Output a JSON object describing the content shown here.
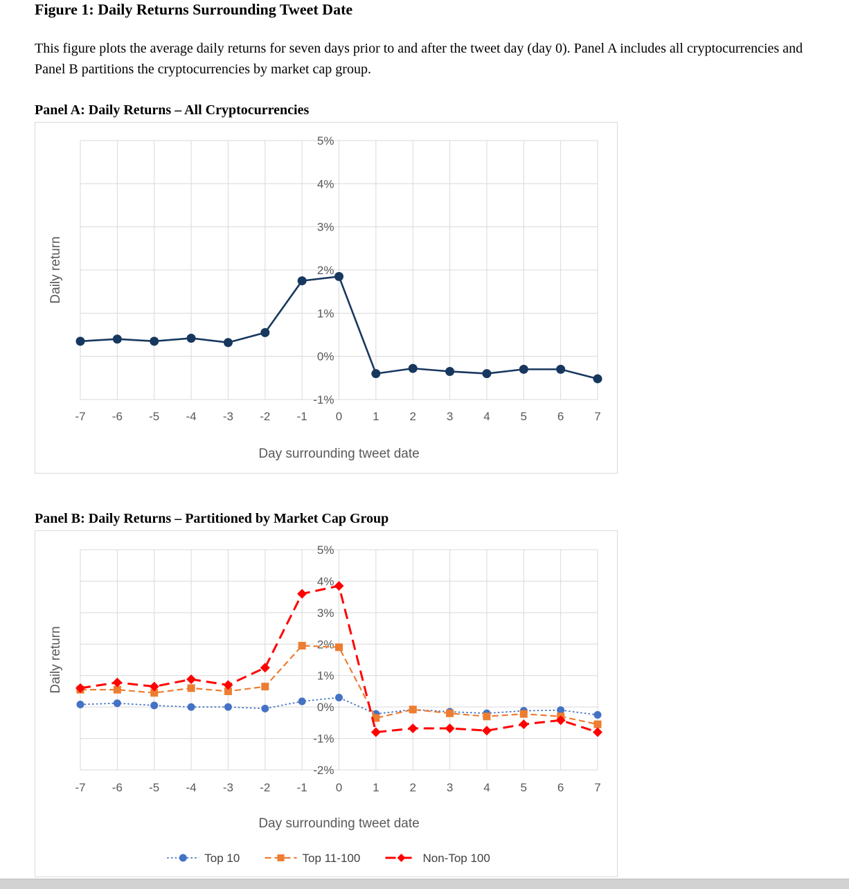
{
  "page": {
    "title": "Figure 1: Daily Returns Surrounding Tweet Date",
    "description": "This figure plots the average daily returns for seven days prior to and after the tweet day (day 0). Panel A includes all cryptocurrencies and Panel B partitions the cryptocurrencies by market cap group."
  },
  "panels": {
    "a_heading": "Panel A: Daily Returns – All Cryptocurrencies",
    "b_heading": "Panel B: Daily Returns – Partitioned by Market Cap Group"
  },
  "chart_data": [
    {
      "type": "line",
      "panel": "A",
      "title": "Panel A: Daily Returns – All Cryptocurrencies",
      "xlabel": "Day surrounding tweet date",
      "ylabel": "Daily return",
      "x": [
        -7,
        -6,
        -5,
        -4,
        -3,
        -2,
        -1,
        0,
        1,
        2,
        3,
        4,
        5,
        6,
        7
      ],
      "xtick_labels": [
        "-7",
        "-6",
        "-5",
        "-4",
        "-3",
        "-2",
        "-1",
        "0",
        "1",
        "2",
        "3",
        "4",
        "5",
        "6",
        "7"
      ],
      "ylim": [
        -1,
        5
      ],
      "yticks": [
        5,
        4,
        3,
        2,
        1,
        0,
        -1
      ],
      "ytick_labels": [
        "5%",
        "4%",
        "3%",
        "2%",
        "1%",
        "0%",
        "-1%"
      ],
      "grid": true,
      "grid_color": "#d9d9d9",
      "axis_text_color": "#595959",
      "legend": null,
      "series": [
        {
          "name": "All cryptocurrencies",
          "color": "#17375e",
          "line": "solid",
          "marker": "circle",
          "values": [
            0.35,
            0.4,
            0.35,
            0.42,
            0.32,
            0.55,
            1.75,
            1.85,
            -0.4,
            -0.28,
            -0.35,
            -0.4,
            -0.3,
            -0.3,
            -0.52
          ]
        }
      ]
    },
    {
      "type": "line",
      "panel": "B",
      "title": "Panel B: Daily Returns – Partitioned by Market Cap Group",
      "xlabel": "Day surrounding tweet date",
      "ylabel": "Daily return",
      "x": [
        -7,
        -6,
        -5,
        -4,
        -3,
        -2,
        -1,
        0,
        1,
        2,
        3,
        4,
        5,
        6,
        7
      ],
      "xtick_labels": [
        "-7",
        "-6",
        "-5",
        "-4",
        "-3",
        "-2",
        "-1",
        "0",
        "1",
        "2",
        "3",
        "4",
        "5",
        "6",
        "7"
      ],
      "ylim": [
        -2,
        5
      ],
      "yticks": [
        5,
        4,
        3,
        2,
        1,
        0,
        -1,
        -2
      ],
      "ytick_labels": [
        "5%",
        "4%",
        "3%",
        "2%",
        "1%",
        "0%",
        "-1%",
        "-2%"
      ],
      "grid": true,
      "grid_color": "#d9d9d9",
      "axis_text_color": "#595959",
      "legend": "bottom",
      "series": [
        {
          "name": "Top 10",
          "color": "#4472c4",
          "line": "dotted",
          "marker": "circle",
          "values": [
            0.08,
            0.12,
            0.05,
            0.0,
            0.0,
            -0.05,
            0.18,
            0.3,
            -0.22,
            -0.08,
            -0.15,
            -0.2,
            -0.12,
            -0.1,
            -0.25
          ]
        },
        {
          "name": "Top 11-100",
          "color": "#ed7d31",
          "line": "dashed",
          "marker": "square",
          "values": [
            0.55,
            0.55,
            0.45,
            0.6,
            0.5,
            0.65,
            1.95,
            1.9,
            -0.35,
            -0.08,
            -0.2,
            -0.3,
            -0.22,
            -0.3,
            -0.55
          ]
        },
        {
          "name": "Non-Top 100",
          "color": "#ff0000",
          "line": "longdash",
          "marker": "diamond",
          "values": [
            0.6,
            0.78,
            0.65,
            0.88,
            0.7,
            1.25,
            3.6,
            3.85,
            -0.8,
            -0.68,
            -0.68,
            -0.75,
            -0.55,
            -0.42,
            -0.8
          ]
        }
      ]
    }
  ]
}
